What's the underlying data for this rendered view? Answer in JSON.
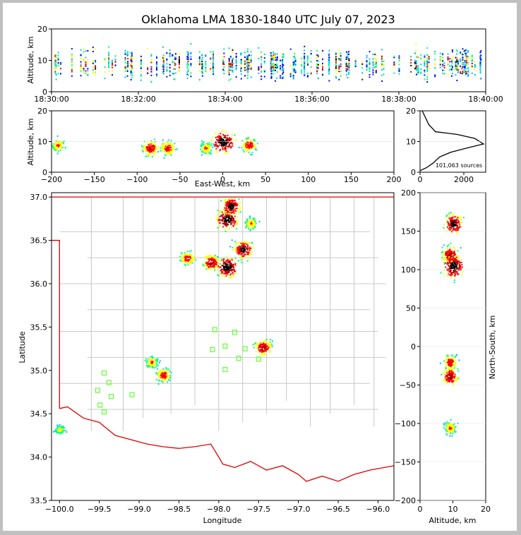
{
  "chart_data": [
    {
      "id": "time-height",
      "type": "heatmap",
      "title": "Oklahoma LMA 1830-1840 UTC July 07, 2023",
      "xlabel": "",
      "ylabel": "Altitude, km",
      "x_ticks": [
        "18:30:00",
        "18:32:00",
        "18:34:00",
        "18:36:00",
        "18:38:00",
        "18:40:00"
      ],
      "y_ticks": [
        "0",
        "10",
        "20"
      ],
      "xlim": [
        "18:30:00",
        "18:40:00"
      ],
      "ylim": [
        0,
        20
      ],
      "color_scale": [
        "#ffffff",
        "#0000ff",
        "#00c0ff",
        "#00ff80",
        "#ffff00",
        "#ff0000",
        "#b00000",
        "#000000"
      ]
    },
    {
      "id": "ew-altitude",
      "type": "heatmap",
      "xlabel": "East-West, km",
      "ylabel": "Altitude, km",
      "x_ticks": [
        "−200",
        "−150",
        "−100",
        "−50",
        "0",
        "50",
        "100",
        "150",
        "200"
      ],
      "y_ticks": [
        "0",
        "10",
        "20"
      ],
      "xlim": [
        -200,
        200
      ],
      "ylim": [
        0,
        20
      ],
      "clusters": [
        {
          "x": -193,
          "z": 9,
          "intensity": 0.6
        },
        {
          "x": -85,
          "z": 8,
          "intensity": 0.75
        },
        {
          "x": -65,
          "z": 8,
          "intensity": 0.7
        },
        {
          "x": 0,
          "z": 10,
          "intensity": 1.0
        },
        {
          "x": 30,
          "z": 9,
          "intensity": 0.7
        },
        {
          "x": -20,
          "z": 8,
          "intensity": 0.6
        }
      ]
    },
    {
      "id": "altitude-histogram",
      "type": "line",
      "annotation": "101,063 sources",
      "x_ticks": [
        "0",
        "2000"
      ],
      "y_ticks": [
        "0",
        "10",
        "20"
      ],
      "xlim": [
        0,
        3000
      ],
      "ylim": [
        0,
        20
      ],
      "points": [
        {
          "x": 0,
          "y": 0.5
        },
        {
          "x": 300,
          "y": 1.5
        },
        {
          "x": 600,
          "y": 3
        },
        {
          "x": 900,
          "y": 5
        },
        {
          "x": 1400,
          "y": 6.5
        },
        {
          "x": 2200,
          "y": 8
        },
        {
          "x": 2900,
          "y": 9.2
        },
        {
          "x": 2500,
          "y": 11
        },
        {
          "x": 1700,
          "y": 12.3
        },
        {
          "x": 700,
          "y": 13.2
        },
        {
          "x": 600,
          "y": 14
        },
        {
          "x": 400,
          "y": 15.5
        },
        {
          "x": 300,
          "y": 17
        },
        {
          "x": 200,
          "y": 18.5
        },
        {
          "x": 100,
          "y": 20
        }
      ]
    },
    {
      "id": "plan-view",
      "type": "heatmap",
      "xlabel": "Longitude",
      "ylabel": "Latitude",
      "x_ticks": [
        "−100.0",
        "−99.5",
        "−99.0",
        "−98.5",
        "−98.0",
        "−97.5",
        "−97.0",
        "−96.5",
        "−96.0"
      ],
      "y_ticks": [
        "33.5",
        "34.0",
        "34.5",
        "35.0",
        "35.5",
        "36.0",
        "36.5",
        "37.0"
      ],
      "xlim": [
        -100.1,
        -95.8
      ],
      "ylim": [
        33.5,
        37.05
      ],
      "clusters": [
        {
          "lon": -97.9,
          "lat": 36.75,
          "intensity": 1.0
        },
        {
          "lon": -97.85,
          "lat": 36.9,
          "intensity": 0.9
        },
        {
          "lon": -97.7,
          "lat": 36.4,
          "intensity": 0.9
        },
        {
          "lon": -97.9,
          "lat": 36.2,
          "intensity": 1.0
        },
        {
          "lon": -98.1,
          "lat": 36.25,
          "intensity": 0.8
        },
        {
          "lon": -98.4,
          "lat": 36.3,
          "intensity": 0.7
        },
        {
          "lon": -97.6,
          "lat": 36.7,
          "intensity": 0.6
        },
        {
          "lon": -97.45,
          "lat": 35.27,
          "intensity": 0.8
        },
        {
          "lon": -98.85,
          "lat": 35.1,
          "intensity": 0.6
        },
        {
          "lon": -98.7,
          "lat": 34.95,
          "intensity": 0.7
        },
        {
          "lon": -100.0,
          "lat": 34.32,
          "intensity": 0.5
        }
      ],
      "stations": [
        {
          "lon": -98.05,
          "lat": 35.47
        },
        {
          "lon": -97.8,
          "lat": 35.44
        },
        {
          "lon": -97.92,
          "lat": 35.28
        },
        {
          "lon": -98.08,
          "lat": 35.24
        },
        {
          "lon": -97.67,
          "lat": 35.25
        },
        {
          "lon": -97.75,
          "lat": 35.14
        },
        {
          "lon": -97.5,
          "lat": 35.13
        },
        {
          "lon": -97.92,
          "lat": 35.01
        },
        {
          "lon": -99.44,
          "lat": 34.97
        },
        {
          "lon": -99.38,
          "lat": 34.86
        },
        {
          "lon": -99.52,
          "lat": 34.77
        },
        {
          "lon": -99.35,
          "lat": 34.7
        },
        {
          "lon": -99.09,
          "lat": 34.72
        },
        {
          "lon": -99.49,
          "lat": 34.6
        },
        {
          "lon": -99.44,
          "lat": 34.52
        }
      ],
      "colors": {
        "border": "#e00000",
        "counties": "#c8c8c8",
        "station": "#66ff33"
      }
    },
    {
      "id": "altitude-ns",
      "type": "heatmap",
      "xlabel": "Altitude, km",
      "ylabel": "North-South, km",
      "x_ticks": [
        "0",
        "10",
        "20"
      ],
      "y_ticks": [
        "200",
        "150",
        "100",
        "50",
        "0",
        "−50",
        "−100",
        "−150",
        "−200"
      ],
      "xlim": [
        0,
        20
      ],
      "ylim": [
        -200,
        200
      ],
      "clusters": [
        {
          "alt": 10,
          "ns": 160,
          "intensity": 0.9
        },
        {
          "alt": 9,
          "ns": 120,
          "intensity": 0.8
        },
        {
          "alt": 10,
          "ns": 105,
          "intensity": 1.0
        },
        {
          "alt": 9,
          "ns": -20,
          "intensity": 0.7
        },
        {
          "alt": 9,
          "ns": -38,
          "intensity": 0.8
        },
        {
          "alt": 9,
          "ns": -105,
          "intensity": 0.6
        }
      ]
    }
  ]
}
